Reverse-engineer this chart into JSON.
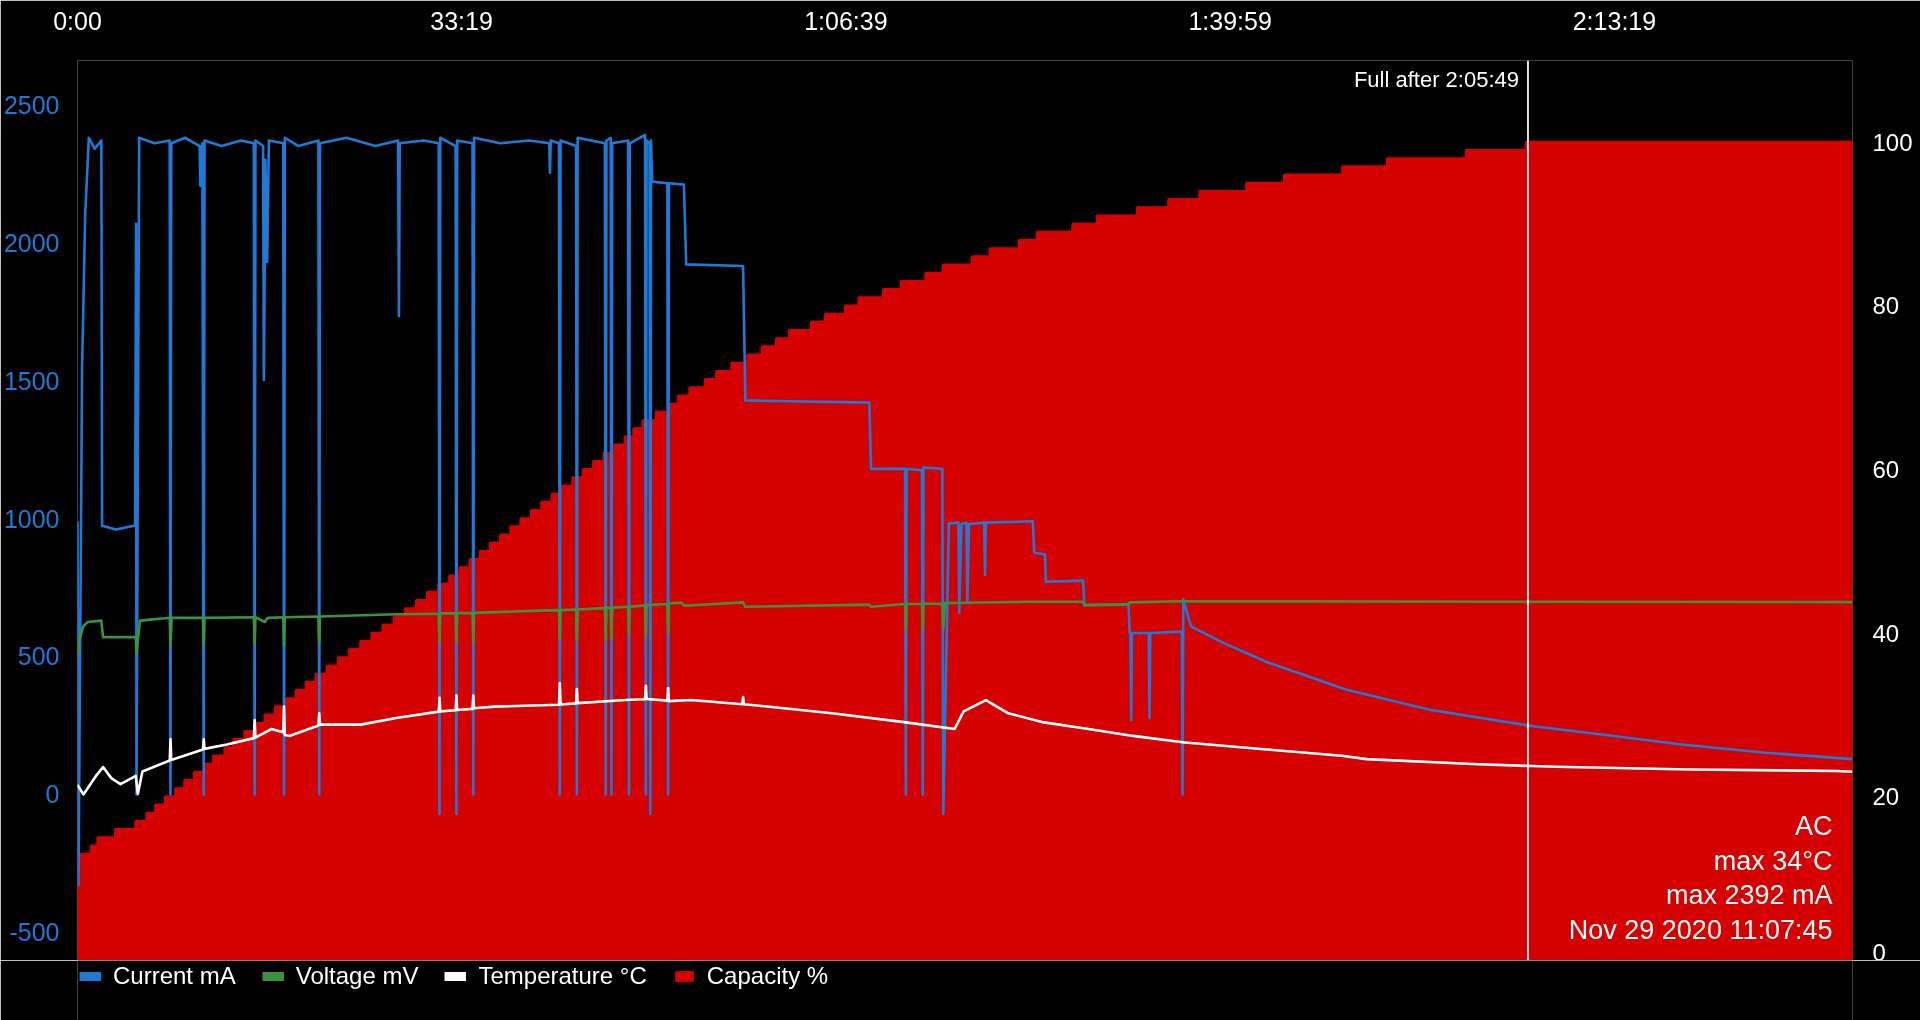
{
  "chart_data": {
    "type": "line",
    "xlim": [
      0,
      9238
    ],
    "xticks": [
      {
        "value": 0,
        "label": "0:00"
      },
      {
        "value": 1999,
        "label": "33:19"
      },
      {
        "value": 3999,
        "label": "1:06:39"
      },
      {
        "value": 5999,
        "label": "1:39:59"
      },
      {
        "value": 7999,
        "label": "2:13:19"
      }
    ],
    "ylim": [
      -602,
      2660
    ],
    "yticks": [
      -500,
      0,
      500,
      1000,
      1500,
      2000,
      2500
    ],
    "y2lim": [
      0,
      110
    ],
    "y2ticks": [
      0,
      20,
      40,
      60,
      80,
      100
    ],
    "legend": "bottom left",
    "series": [
      {
        "name": "Current mA",
        "color": "#1e7ad6",
        "x": [
          0,
          5,
          24,
          40,
          59,
          90,
          124,
          128,
          200,
          300,
          305,
          307,
          321,
          400,
          480,
          484,
          488,
          560,
          636,
          639,
          650,
          657,
          661,
          750,
          850,
          918,
          922,
          926,
          966,
          970,
          978,
          987,
          996,
          1071,
          1075,
          1079,
          1150,
          1254,
          1258,
          1262,
          1400,
          1550,
          1669,
          1673,
          1677,
          1800,
          1880,
          1884,
          1888,
          1968,
          1972,
          1976,
          2056,
          2060,
          2064,
          2200,
          2350,
          2455,
          2459,
          2463,
          2506,
          2510,
          2514,
          2595,
          2599,
          2603,
          2745,
          2749,
          2753,
          2775,
          2779,
          2783,
          2866,
          2870,
          2874,
          2954,
          2958,
          2962,
          2977,
          2981,
          2985,
          2991,
          3070,
          3074,
          3078,
          3156,
          3168,
          3464,
          3476,
          4121,
          4130,
          4307,
          4311,
          4315,
          4395,
          4399,
          4403,
          4501,
          4506,
          4535,
          4585,
          4589,
          4600,
          4627,
          4631,
          4640,
          4719,
          4723,
          4727,
          4972,
          4979,
          5035,
          5040,
          5234,
          5240,
          5470,
          5476,
          5480,
          5484,
          5488,
          5575,
          5579,
          5583,
          5748,
          5751,
          5755,
          5795,
          5956,
          6189,
          6601,
          7038,
          7547,
          7912,
          8350,
          8786,
          9238
        ],
        "values": [
          990,
          -330,
          1550,
          2100,
          2380,
          2340,
          2370,
          974,
          960,
          975,
          2068,
          0,
          2380,
          2360,
          2370,
          0,
          2360,
          2380,
          2350,
          2206,
          2360,
          0,
          2370,
          2350,
          2370,
          2360,
          0,
          2370,
          2350,
          1502,
          2300,
          1930,
          2370,
          2360,
          0,
          2380,
          2350,
          2370,
          0,
          2360,
          2380,
          2350,
          2370,
          1734,
          2360,
          2370,
          2360,
          -71,
          2380,
          2350,
          -71,
          2370,
          2360,
          0,
          2380,
          2360,
          2370,
          2360,
          2253,
          2370,
          2360,
          0,
          2370,
          2350,
          0,
          2380,
          2360,
          0,
          2370,
          2380,
          0,
          2360,
          2370,
          0,
          2360,
          2390,
          0,
          2370,
          2360,
          -71,
          2370,
          2221,
          2215,
          0,
          2215,
          2210,
          1921,
          1915,
          1428,
          1420,
          1180,
          1180,
          0,
          1180,
          1175,
          0,
          1185,
          1180,
          -71,
          982,
          985,
          658,
          980,
          985,
          698,
          980,
          985,
          795,
          985,
          990,
          876,
          870,
          771,
          775,
          686,
          690,
          585,
          585,
          269,
          585,
          585,
          277,
          585,
          590,
          0,
          707,
          609,
          552,
          480,
          380,
          307,
          250,
          219,
          181,
          151,
          128
        ]
      },
      {
        "name": "Voltage mV",
        "color": "#3d9140",
        "x": [
          0,
          10,
          30,
          54,
          124,
          133,
          303,
          307,
          325,
          480,
          484,
          490,
          653,
          657,
          661,
          918,
          922,
          926,
          975,
          990,
          1071,
          1075,
          1079,
          1254,
          1258,
          1262,
          1660,
          1880,
          1884,
          1888,
          1968,
          1972,
          1976,
          2056,
          2060,
          2064,
          2401,
          2506,
          2510,
          2514,
          2595,
          2599,
          2603,
          2745,
          2749,
          2753,
          2775,
          2779,
          2783,
          2866,
          2870,
          2874,
          2954,
          2958,
          2962,
          3070,
          3074,
          3078,
          3143,
          3160,
          3464,
          3476,
          4121,
          4130,
          4307,
          4311,
          4315,
          4395,
          4399,
          4403,
          4501,
          4506,
          4515,
          4960,
          5234,
          5240,
          5470,
          5476,
          5751,
          9238
        ],
        "values": [
          500,
          560,
          610,
          625,
          630,
          570,
          570,
          511,
          630,
          640,
          540,
          640,
          640,
          540,
          640,
          642,
          545,
          642,
          625,
          640,
          642,
          540,
          642,
          645,
          545,
          645,
          653,
          655,
          550,
          656,
          656,
          550,
          657,
          657,
          550,
          658,
          666,
          668,
          560,
          668,
          670,
          560,
          670,
          675,
          560,
          676,
          676,
          565,
          677,
          680,
          580,
          680,
          685,
          570,
          686,
          690,
          585,
          692,
          695,
          684,
          696,
          680,
          688,
          680,
          690,
          600,
          690,
          690,
          600,
          692,
          690,
          600,
          694,
          698,
          698,
          686,
          688,
          696,
          700,
          697
        ]
      },
      {
        "name": "Temperature °C",
        "color": "#ffffff",
        "x": [
          0,
          31,
          96,
          133,
          177,
          224,
          303,
          314,
          338,
          480,
          484,
          488,
          653,
          657,
          661,
          778,
          918,
          922,
          926,
          1010,
          1071,
          1075,
          1079,
          1103,
          1254,
          1258,
          1262,
          1474,
          1660,
          1880,
          1884,
          1888,
          1968,
          1972,
          1976,
          2056,
          2060,
          2064,
          2169,
          2506,
          2510,
          2514,
          2595,
          2599,
          2603,
          2850,
          2954,
          2958,
          2962,
          3070,
          3074,
          3078,
          3193,
          3460,
          3464,
          3468,
          3926,
          4311,
          4565,
          4612,
          4728,
          4844,
          5030,
          5262,
          5494,
          5751,
          6189,
          6579,
          6710,
          7257,
          7694,
          8393,
          9158,
          9238
        ],
        "values": [
          34,
          0,
          67,
          99,
          58,
          37,
          67,
          2,
          83,
          123,
          200,
          125,
          163,
          200,
          165,
          181,
          204,
          269,
          206,
          237,
          225,
          318,
          215,
          212,
          250,
          294,
          253,
          253,
          277,
          300,
          350,
          301,
          305,
          358,
          306,
          310,
          358,
          312,
          318,
          325,
          403,
          326,
          330,
          382,
          331,
          342,
          345,
          394,
          346,
          340,
          385,
          338,
          342,
          327,
          353,
          327,
          294,
          261,
          237,
          301,
          342,
          294,
          261,
          237,
          212,
          189,
          163,
          140,
          128,
          110,
          100,
          90,
          85,
          82
        ]
      },
      {
        "name": "Capacity %",
        "type": "area",
        "axis": "y2",
        "color": "#d50000",
        "x": [
          0,
          71,
          71,
          106,
          106,
          198,
          198,
          303,
          303,
          361,
          361,
          407,
          407,
          458,
          458,
          511,
          511,
          558,
          558,
          609,
          609,
          663,
          663,
          708,
          708,
          767,
          767,
          813,
          813,
          871,
          871,
          925,
          925,
          978,
          978,
          1030,
          1030,
          1085,
          1085,
          1138,
          1138,
          1190,
          1190,
          1242,
          1242,
          1300,
          1300,
          1358,
          1358,
          1416,
          1416,
          1474,
          1474,
          1532,
          1532,
          1590,
          1590,
          1648,
          1648,
          1706,
          1706,
          1764,
          1764,
          1822,
          1822,
          1880,
          1880,
          1937,
          1937,
          1990,
          1990,
          2043,
          2043,
          2096,
          2096,
          2149,
          2149,
          2202,
          2202,
          2255,
          2255,
          2308,
          2308,
          2362,
          2362,
          2416,
          2416,
          2470,
          2470,
          2524,
          2524,
          2578,
          2578,
          2632,
          2632,
          2686,
          2686,
          2740,
          2740,
          2795,
          2795,
          2850,
          2850,
          2895,
          2895,
          2943,
          2943,
          3012,
          3012,
          3082,
          3082,
          3128,
          3128,
          3187,
          3187,
          3268,
          3268,
          3326,
          3326,
          3405,
          3405,
          3488,
          3488,
          3564,
          3564,
          3638,
          3638,
          3706,
          3706,
          3819,
          3819,
          3893,
          3893,
          3997,
          3997,
          4067,
          4067,
          4195,
          4195,
          4288,
          4288,
          4415,
          4415,
          4506,
          4506,
          4657,
          4657,
          4750,
          4750,
          4901,
          4901,
          4995,
          4995,
          5180,
          5180,
          5308,
          5308,
          5517,
          5517,
          5679,
          5679,
          5841,
          5841,
          6085,
          6085,
          6282,
          6282,
          6585,
          6585,
          6817,
          6817,
          7228,
          7228,
          7540,
          7540,
          9238
        ],
        "values": [
          13,
          13,
          14,
          14,
          15,
          15,
          16,
          16,
          17,
          17,
          18,
          18,
          19,
          19,
          20,
          20,
          21,
          21,
          22,
          22,
          23,
          23,
          24,
          24,
          25,
          25,
          26,
          26,
          27,
          27,
          28,
          28,
          29,
          29,
          30,
          30,
          31,
          31,
          32,
          32,
          33,
          33,
          34,
          34,
          35,
          35,
          36,
          36,
          37,
          37,
          38,
          38,
          39,
          39,
          40,
          40,
          41,
          41,
          42,
          42,
          43,
          43,
          44,
          44,
          45,
          45,
          46,
          46,
          47,
          47,
          48,
          48,
          49,
          49,
          50,
          50,
          51,
          51,
          52,
          52,
          53,
          53,
          54,
          54,
          55,
          55,
          56,
          56,
          57,
          57,
          58,
          58,
          59,
          59,
          60,
          60,
          61,
          61,
          62,
          62,
          63,
          63,
          64,
          64,
          65,
          65,
          66,
          66,
          67,
          67,
          68,
          68,
          69,
          69,
          70,
          70,
          71,
          71,
          72,
          72,
          73,
          73,
          74,
          74,
          75,
          75,
          76,
          76,
          77,
          77,
          78,
          78,
          79,
          79,
          80,
          80,
          81,
          81,
          82,
          82,
          83,
          83,
          84,
          84,
          85,
          85,
          86,
          86,
          87,
          87,
          88,
          88,
          89,
          89,
          90,
          90,
          91,
          91,
          92,
          92,
          93,
          93,
          94,
          94,
          95,
          95,
          96,
          96,
          97,
          97,
          98,
          98,
          99,
          99,
          100,
          100
        ]
      }
    ],
    "ref_lines": [
      {
        "axis": "x",
        "value": 7549,
        "color": "#e0e0e0"
      }
    ],
    "annotations": [
      {
        "text": "Full after 2:05:49",
        "x": 7549,
        "y": 2590
      },
      "AC",
      "max 34°C",
      "max 2392 mA",
      "Nov 29 2020 11:07:45"
    ]
  }
}
